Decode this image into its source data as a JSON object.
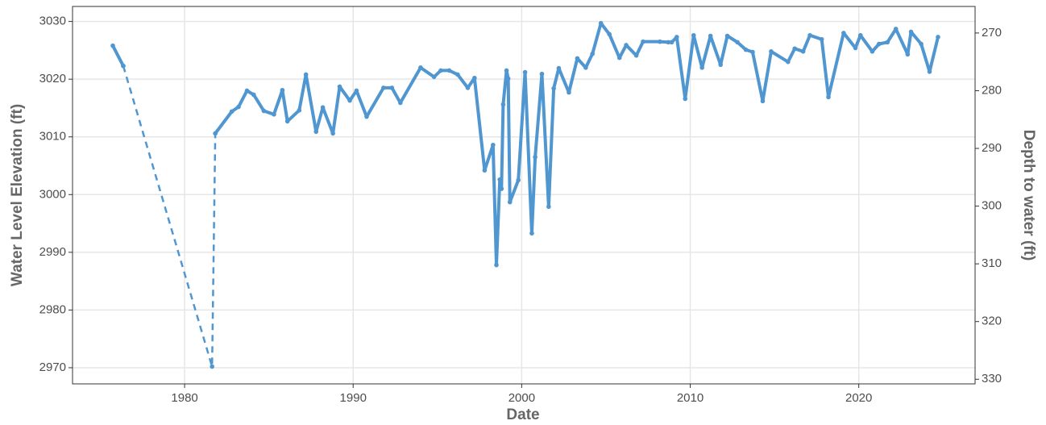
{
  "chart_data": {
    "type": "line",
    "x_label": "Date",
    "y_label": "Water Level Elevation (ft)",
    "y2_label": "Depth to water (ft)",
    "x": [
      1975.74,
      1976.36,
      1981.63,
      1981.82,
      1982.8,
      1983.2,
      1983.7,
      1984.1,
      1984.7,
      1985.3,
      1985.8,
      1986.1,
      1986.8,
      1987.2,
      1987.8,
      1988.2,
      1988.8,
      1989.2,
      1989.8,
      1990.2,
      1990.8,
      1991.8,
      1992.3,
      1992.8,
      1994.0,
      1994.8,
      1995.2,
      1995.7,
      1996.2,
      1996.8,
      1997.2,
      1997.8,
      1998.3,
      1998.5,
      1998.7,
      1998.8,
      1998.9,
      1999.1,
      1999.2,
      1999.3,
      1999.8,
      2000.2,
      2000.6,
      2000.8,
      2001.2,
      2001.6,
      2001.9,
      2002.2,
      2002.8,
      2003.3,
      2003.8,
      2004.2,
      2004.7,
      2005.2,
      2005.8,
      2006.2,
      2006.8,
      2007.2,
      2008.2,
      2008.7,
      2008.9,
      2009.2,
      2009.7,
      2010.2,
      2010.7,
      2011.2,
      2011.8,
      2012.2,
      2012.8,
      2013.3,
      2013.7,
      2014.3,
      2014.8,
      2015.8,
      2016.2,
      2016.7,
      2017.1,
      2017.8,
      2018.2,
      2019.1,
      2019.8,
      2020.1,
      2020.8,
      2021.2,
      2021.7,
      2022.2,
      2022.9,
      2023.1,
      2023.7,
      2024.2,
      2024.7
    ],
    "series": [
      {
        "color": "#5096d0",
        "linestyle": "solid",
        "values": [
          3025.8,
          3022.3,
          null,
          3010.6,
          3014.4,
          3015.2,
          3018.0,
          3017.3,
          3014.5,
          3013.9,
          3018.1,
          3012.7,
          3014.6,
          3020.8,
          3010.9,
          3015.1,
          3010.6,
          3018.7,
          3016.3,
          3018.0,
          3013.5,
          3018.5,
          3018.5,
          3015.9,
          3022.0,
          3020.4,
          3021.5,
          3021.5,
          3020.8,
          3018.5,
          3020.2,
          3004.2,
          3008.6,
          2987.8,
          3002.6,
          3001.0,
          3015.6,
          3021.5,
          3020.1,
          2998.7,
          3002.5,
          3021.2,
          2993.3,
          3006.5,
          3020.9,
          2997.9,
          3018.4,
          3021.9,
          3017.7,
          3023.6,
          3022.0,
          3024.4,
          3029.7,
          3027.8,
          3023.7,
          3025.9,
          3024.1,
          3026.5,
          3026.5,
          3026.4,
          3026.4,
          3027.3,
          3016.6,
          3027.6,
          3022.0,
          3027.5,
          3022.5,
          3027.5,
          3026.4,
          3025.1,
          3024.7,
          3016.2,
          3024.8,
          3023.0,
          3025.3,
          3024.8,
          3027.6,
          3026.9,
          3016.9,
          3028.0,
          3025.4,
          3027.6,
          3024.8,
          3026.1,
          3026.4,
          3028.7,
          3024.3,
          3028.2,
          3026.1,
          3021.3,
          3027.3
        ]
      },
      {
        "color": "#5096d0",
        "linestyle": "dashed",
        "values": [
          null,
          3022.3,
          2970.2,
          3010.6,
          null,
          null,
          null,
          null,
          null,
          null,
          null,
          null,
          null,
          null,
          null,
          null,
          null,
          null,
          null,
          null,
          null,
          null,
          null,
          null,
          null,
          null,
          null,
          null,
          null,
          null,
          null,
          null,
          null,
          null,
          null,
          null,
          null,
          null,
          null,
          null,
          null,
          null,
          null,
          null,
          null,
          null,
          null,
          null,
          null,
          null,
          null,
          null,
          null,
          null,
          null,
          null,
          null,
          null,
          null,
          null,
          null,
          null,
          null,
          null,
          null,
          null,
          null,
          null,
          null,
          null,
          null,
          null,
          null,
          null,
          null,
          null,
          null,
          null,
          null,
          null,
          null,
          null,
          null,
          null,
          null,
          null,
          null,
          null,
          null,
          null,
          null
        ]
      }
    ],
    "xlim": [
      1973.35,
      2026.9
    ],
    "xticks": [
      1980,
      1990,
      2000,
      2010,
      2020
    ],
    "ylim": [
      2967.2,
      3032.6
    ],
    "yticks": [
      2970,
      2980,
      2990,
      3000,
      3010,
      3020,
      3030
    ],
    "y2lim": [
      330.8,
      265.4
    ],
    "y2ticks": [
      270,
      280,
      290,
      300,
      310,
      320,
      330
    ],
    "grid": true
  }
}
